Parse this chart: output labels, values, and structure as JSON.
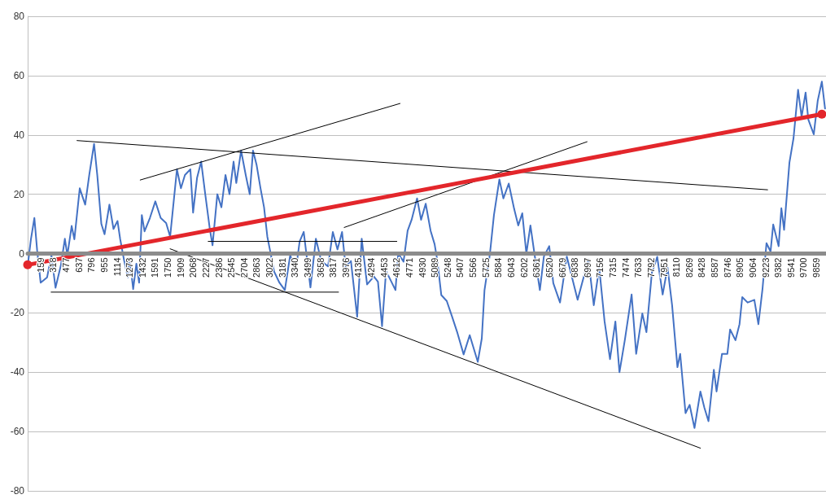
{
  "chart_data": {
    "type": "line",
    "xlim": [
      0,
      9980
    ],
    "xticks": [
      159,
      318,
      477,
      637,
      796,
      955,
      1114,
      1273,
      1432,
      1591,
      1750,
      1909,
      2068,
      2227,
      2386,
      2545,
      2704,
      2863,
      3022,
      3181,
      3340,
      3499,
      3658,
      3817,
      3976,
      4135,
      4294,
      4453,
      4612,
      4771,
      4930,
      5089,
      5248,
      5407,
      5566,
      5725,
      5884,
      6043,
      6202,
      6361,
      6520,
      6679,
      6838,
      6997,
      7156,
      7315,
      7474,
      7633,
      7792,
      7951,
      8110,
      8269,
      8428,
      8587,
      8746,
      8905,
      9064,
      9223,
      9382,
      9541,
      9700,
      9859
    ],
    "ylim": [
      -80,
      80
    ],
    "yticks": [
      -80,
      -60,
      -40,
      -20,
      0,
      20,
      40,
      60,
      80
    ],
    "grid": "y",
    "series": [
      {
        "color": "#4472c4",
        "marker": "none",
        "line_style": "solid",
        "x": [
          0,
          40,
          84,
          118,
          162,
          243,
          297,
          348,
          415,
          465,
          496,
          550,
          584,
          651,
          719,
          770,
          830,
          870,
          921,
          961,
          1022,
          1073,
          1123,
          1157,
          1207,
          1252,
          1275,
          1319,
          1359,
          1393,
          1427,
          1461,
          1528,
          1596,
          1663,
          1731,
          1781,
          1815,
          1866,
          1916,
          1966,
          2034,
          2068,
          2118,
          2169,
          2220,
          2277,
          2311,
          2371,
          2422,
          2473,
          2523,
          2574,
          2608,
          2668,
          2726,
          2776,
          2817,
          2861,
          2911,
          2955,
          2996,
          3029,
          3080,
          3147,
          3215,
          3282,
          3350,
          3400,
          3451,
          3535,
          3603,
          3670,
          3755,
          3815,
          3873,
          3930,
          3974,
          4041,
          4119,
          4176,
          4243,
          4328,
          4379,
          4430,
          4480,
          4547,
          4598,
          4632,
          4699,
          4750,
          4800,
          4868,
          4918,
          4976,
          5037,
          5087,
          5121,
          5171,
          5239,
          5306,
          5373,
          5450,
          5526,
          5627,
          5677,
          5711,
          5779,
          5829,
          5897,
          5947,
          6014,
          6082,
          6133,
          6183,
          6234,
          6285,
          6335,
          6403,
          6453,
          6520,
          6571,
          6655,
          6740,
          6875,
          7010,
          7077,
          7145,
          7212,
          7280,
          7347,
          7398,
          7465,
          7550,
          7607,
          7684,
          7735,
          7803,
          7870,
          7938,
          7999,
          8056,
          8123,
          8157,
          8224,
          8275,
          8336,
          8410,
          8460,
          8511,
          8578,
          8612,
          8680,
          8747,
          8781,
          8848,
          8899,
          8933,
          9000,
          9084,
          9135,
          9186,
          9236,
          9287,
          9320,
          9388,
          9422,
          9456,
          9523,
          9574,
          9631,
          9675,
          9725,
          9759,
          9827,
          9877,
          9928,
          9968
        ],
        "values": [
          -4.3,
          4.7,
          12,
          1.2,
          -9.8,
          -8,
          -0.6,
          -11.5,
          -4,
          5,
          -0.6,
          9.3,
          4.8,
          22,
          16.5,
          26.5,
          37,
          26.5,
          10,
          6.5,
          16.5,
          8.3,
          11,
          4.8,
          -2.5,
          -8,
          -1.5,
          -12,
          -3.4,
          -9.8,
          13,
          7.5,
          12,
          17.6,
          12,
          10.3,
          5.7,
          14.8,
          28.4,
          22,
          26.5,
          28.4,
          13.8,
          25.6,
          31,
          20,
          8.3,
          2.8,
          20,
          15.6,
          26.5,
          20,
          31,
          23.8,
          34.7,
          26.5,
          20,
          34.7,
          30,
          22,
          15.6,
          5.7,
          1.2,
          -6,
          -9.8,
          -12.3,
          -0.5,
          -6,
          4.1,
          7.3,
          -11.4,
          5,
          -2.5,
          -4.3,
          7.3,
          1.4,
          7.3,
          -4.3,
          -2.5,
          -21.3,
          5,
          -10.4,
          -7.7,
          -9.5,
          -24.5,
          -5.9,
          -9.5,
          -12.3,
          0,
          -2.7,
          7.7,
          11.4,
          18.6,
          11.4,
          16.8,
          7.7,
          3.2,
          -2.3,
          -14,
          -16,
          -21.3,
          -26.8,
          -34,
          -27.5,
          -36.5,
          -28.6,
          -12.3,
          0,
          13,
          25,
          18.6,
          23.6,
          15,
          9.5,
          13.6,
          0,
          9.5,
          0,
          -12.3,
          -1,
          2.5,
          -10,
          -16.5,
          -1,
          -15.6,
          -2,
          -17.4,
          -4.7,
          -22.9,
          -35.6,
          -22.9,
          -40,
          -29.2,
          -13.8,
          -33.8,
          -20.2,
          -26.5,
          -6.5,
          -1.1,
          -13.8,
          -4.7,
          -17.4,
          -38.3,
          -33.8,
          -53.8,
          -51,
          -58.8,
          -46.5,
          -52,
          -56.5,
          -39.2,
          -46.5,
          -33.8,
          -33.8,
          -25.6,
          -29.2,
          -23.8,
          -14.7,
          -16.5,
          -15.6,
          -23.8,
          -12,
          3.5,
          0.7,
          9.8,
          2.5,
          15.3,
          8,
          30.7,
          38.9,
          55.2,
          46.1,
          54.3,
          45.2,
          40.2,
          51.6,
          58,
          48.9
        ]
      },
      {
        "color": "#e3262b",
        "marker": "circle",
        "line_style": "solid",
        "x": [
          0,
          9928
        ],
        "values": [
          -3.8,
          47
        ]
      },
      {
        "color": "#000000",
        "marker": "none",
        "line_style": "solid",
        "x": [
          617,
          9250
        ],
        "values": [
          38.1,
          21.5
        ]
      },
      {
        "color": "#000000",
        "marker": "none",
        "line_style": "solid",
        "x": [
          1407,
          4655
        ],
        "values": [
          24.8,
          50.6
        ]
      },
      {
        "color": "#000000",
        "marker": "none",
        "line_style": "solid",
        "x": [
          1781,
          8410
        ],
        "values": [
          1.6,
          -65.6
        ]
      },
      {
        "color": "#000000",
        "marker": "none",
        "line_style": "solid",
        "x": [
          2257,
          4615
        ],
        "values": [
          4.1,
          4.1
        ]
      },
      {
        "color": "#000000",
        "marker": "none",
        "line_style": "solid",
        "x": [
          293,
          3886
        ],
        "values": [
          -13,
          -13
        ]
      },
      {
        "color": "#000000",
        "marker": "none",
        "line_style": "solid",
        "x": [
          3957,
          6993
        ],
        "values": [
          8.8,
          37.7
        ]
      }
    ]
  }
}
